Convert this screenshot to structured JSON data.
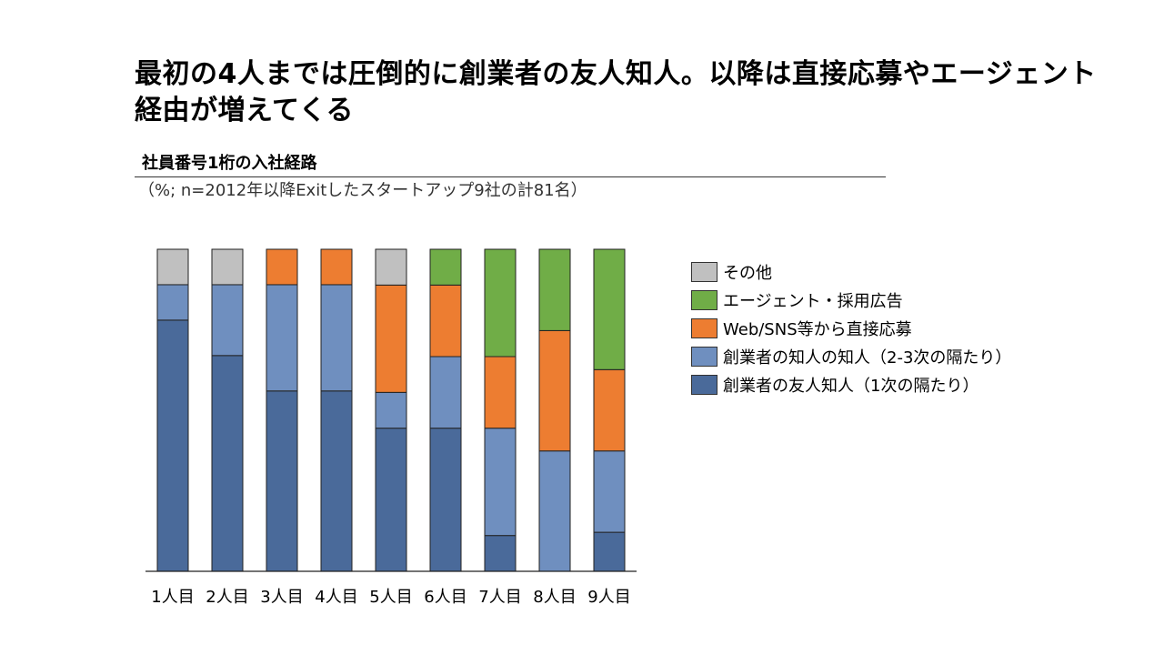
{
  "title": "最初の4人までは圧倒的に創業者の友人知人。以降は直接応募やエージェント経由が増えてくる",
  "subtitle": "社員番号1桁の入社経路",
  "note": "（%; n=2012年以降Exitしたスタートアップ9社の計81名）",
  "chart_data": {
    "type": "bar",
    "stacked": true,
    "title": "社員番号1桁の入社経路",
    "categories": [
      "1人目",
      "2人目",
      "3人目",
      "4人目",
      "5人目",
      "6人目",
      "7人目",
      "8人目",
      "9人目"
    ],
    "ylim": [
      0,
      100
    ],
    "grid": false,
    "legend_position": "right",
    "series": [
      {
        "name": "創業者の友人知人（1次の隔たり）",
        "color": "#4a6a9a",
        "values": [
          78,
          67,
          56,
          56,
          44,
          44,
          11,
          0,
          12
        ]
      },
      {
        "name": "創業者の知人の知人（2-3次の隔たり）",
        "color": "#6f8fbf",
        "values": [
          11,
          22,
          33,
          33,
          11,
          22,
          33,
          37,
          25
        ]
      },
      {
        "name": "Web/SNS等から直接応募",
        "color": "#ed7d31",
        "values": [
          0,
          0,
          11,
          11,
          33,
          22,
          22,
          37,
          25
        ]
      },
      {
        "name": "エージェント・採用広告",
        "color": "#70ad47",
        "values": [
          0,
          0,
          0,
          0,
          0,
          11,
          33,
          25,
          37
        ]
      },
      {
        "name": "その他",
        "color": "#c0c0c0",
        "values": [
          11,
          11,
          0,
          0,
          11,
          0,
          0,
          0,
          0
        ]
      }
    ]
  }
}
